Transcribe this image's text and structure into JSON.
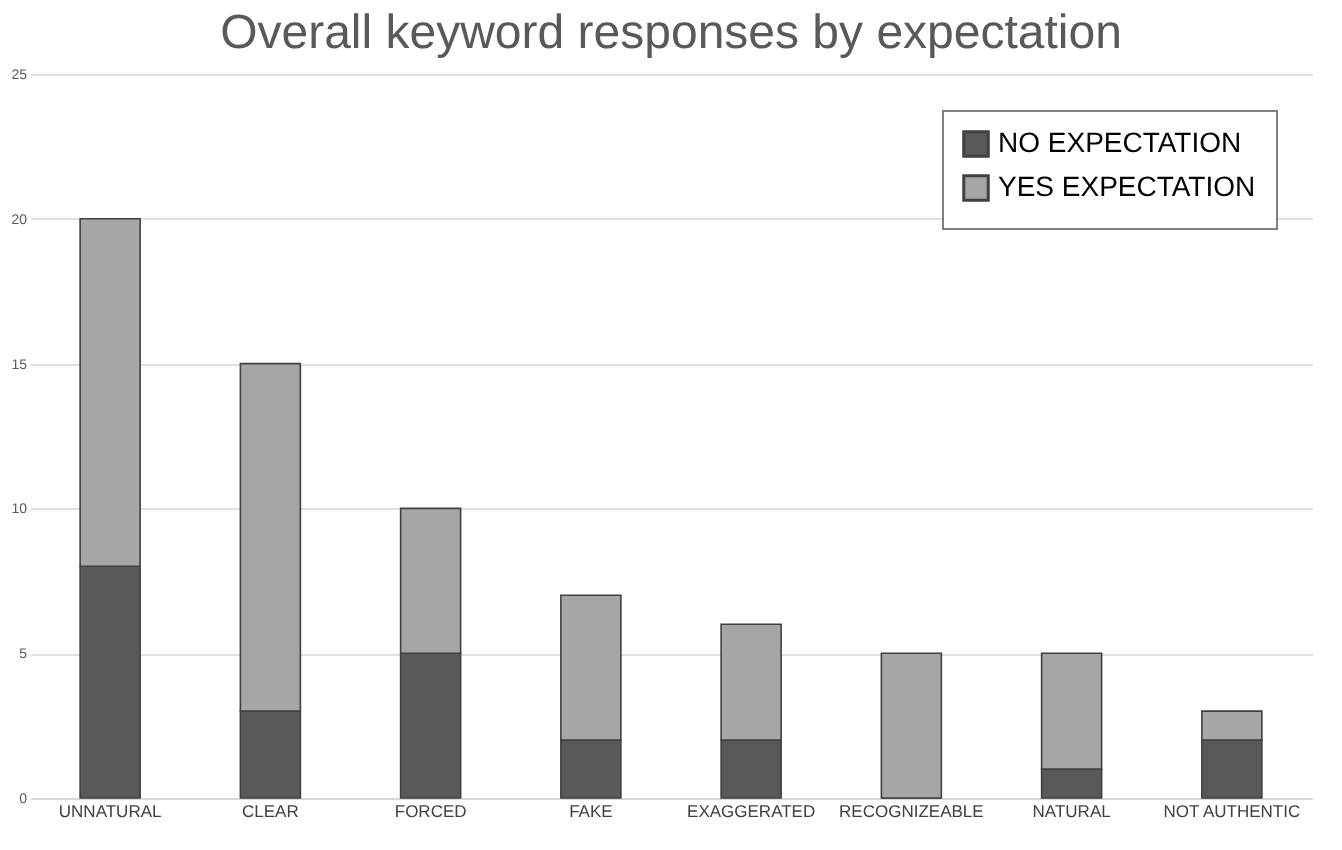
{
  "chart_data": {
    "type": "bar",
    "title": "Overall keyword responses by expectation",
    "categories": [
      "UNNATURAL",
      "CLEAR",
      "FORCED",
      "FAKE",
      "EXAGGERATED",
      "RECOGNIZEABLE",
      "NATURAL",
      "NOT AUTHENTIC"
    ],
    "series": [
      {
        "name": "NO EXPECTATION",
        "color": "#595959",
        "values": [
          8,
          3,
          5,
          2,
          2,
          0,
          1,
          2
        ]
      },
      {
        "name": "YES EXPECTATION",
        "color": "#a6a6a6",
        "values": [
          12,
          12,
          5,
          5,
          4,
          5,
          4,
          1
        ]
      }
    ],
    "stacked": true,
    "ylim": [
      0,
      25
    ],
    "yticks": [
      0,
      5,
      10,
      15,
      20,
      25
    ],
    "grid": "y",
    "legend": "top right"
  }
}
